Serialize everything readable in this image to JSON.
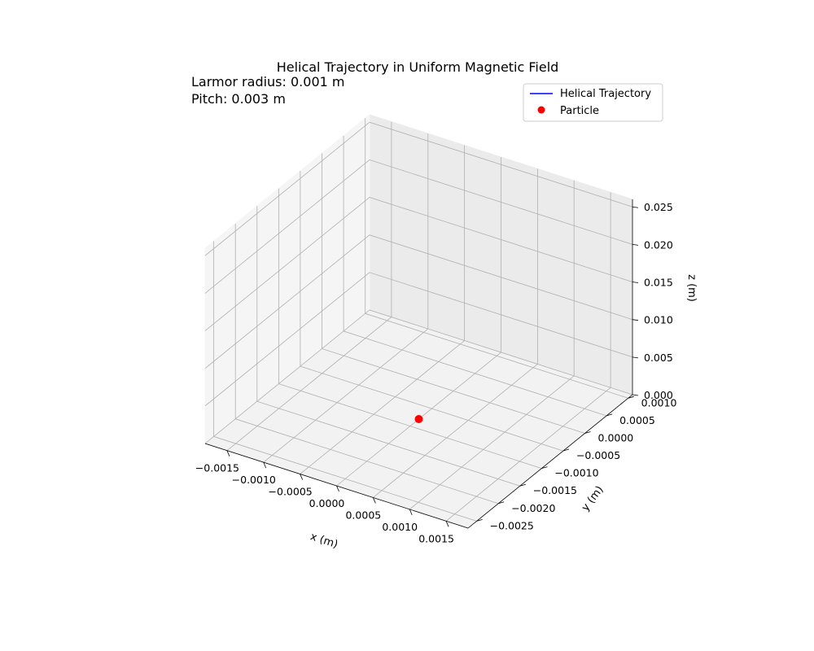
{
  "chart_data": {
    "type": "line",
    "projection": "3d",
    "title": "Helical Trajectory in Uniform Magnetic Field",
    "annotations": [
      "Larmor radius: 0.001 m",
      "Pitch: 0.003 m"
    ],
    "xlabel": "x (m)",
    "ylabel": "y (m)",
    "zlabel": "z (m)",
    "xlim": [
      -0.0018,
      0.0018
    ],
    "ylim": [
      -0.0027,
      0.0011
    ],
    "zlim": [
      0,
      0.026
    ],
    "x_ticks": [
      -0.0015,
      -0.001,
      -0.0005,
      0.0,
      0.0005,
      0.001,
      0.0015
    ],
    "y_ticks": [
      -0.0025,
      -0.002,
      -0.0015,
      -0.001,
      -0.0005,
      0.0,
      0.0005,
      0.001
    ],
    "z_ticks": [
      0.0,
      0.005,
      0.01,
      0.015,
      0.02,
      0.025
    ],
    "x_tick_labels": [
      "−0.0015",
      "−0.0010",
      "−0.0005",
      "0.0000",
      "0.0005",
      "0.0010",
      "0.0015"
    ],
    "y_tick_labels": [
      "−0.0025",
      "−0.0020",
      "−0.0015",
      "−0.0010",
      "−0.0005",
      "0.0000",
      "0.0005",
      "0.0010"
    ],
    "z_tick_labels": [
      "0.000",
      "0.005",
      "0.010",
      "0.015",
      "0.020",
      "0.025"
    ],
    "grid": true,
    "legend_position": "top-right",
    "series": [
      {
        "name": "Helical Trajectory",
        "type": "line",
        "color": "#0000ff",
        "points": []
      },
      {
        "name": "Particle",
        "type": "scatter",
        "color": "#ff0000",
        "points": [
          [
            0.0,
            -0.0008,
            0.0
          ]
        ]
      }
    ]
  }
}
